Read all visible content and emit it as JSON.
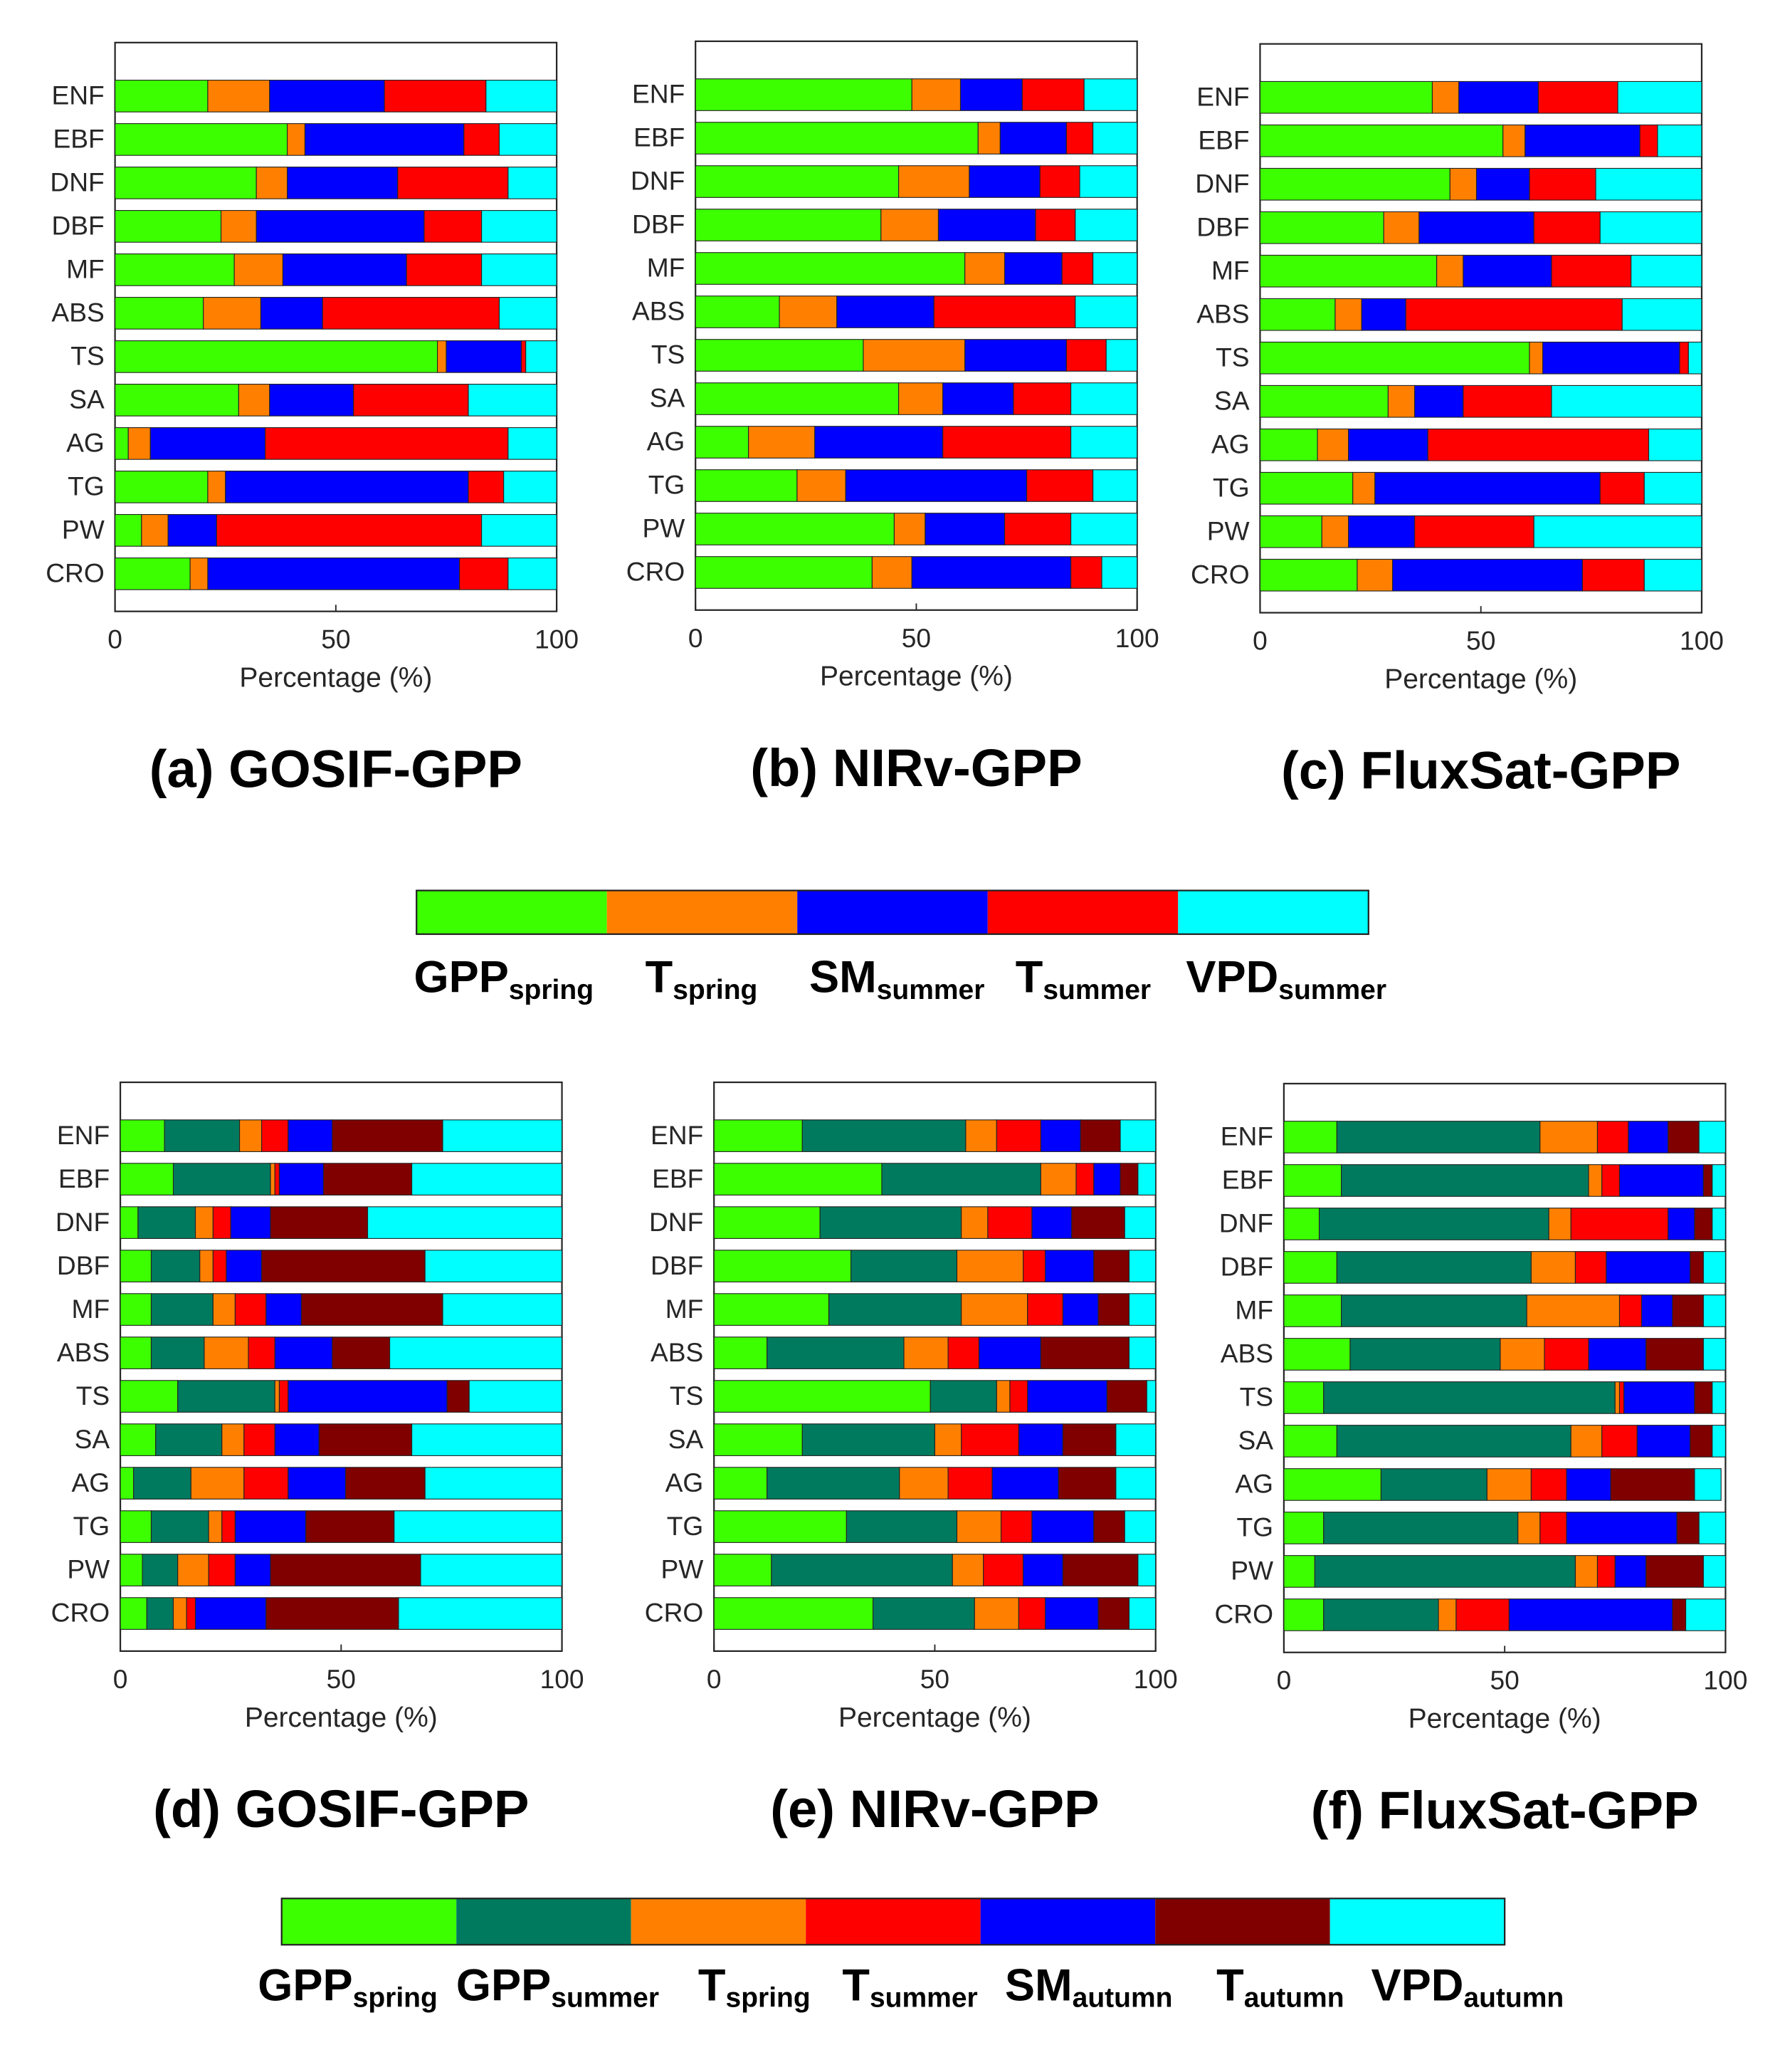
{
  "colors": {
    "GPPspring": "#3cff00",
    "GPPsummer": "#007a5e",
    "Tspring": "#ff8000",
    "Tsummer": "#ff0000",
    "SMsummer": "#0000ff",
    "SMautumn": "#0000ff",
    "Tautumn": "#800000",
    "VPDsummer": "#00ffff",
    "VPDautumn": "#00ffff"
  },
  "legends": [
    {
      "drivers": [
        "GPPspring",
        "Tspring",
        "SMsummer",
        "Tsummer",
        "VPDsummer"
      ],
      "labels": [
        {
          "main": "GPP",
          "sub": "spring"
        },
        {
          "main": "T",
          "sub": "spring"
        },
        {
          "main": "SM",
          "sub": "summer"
        },
        {
          "main": "T",
          "sub": "summer"
        },
        {
          "main": "VPD",
          "sub": "summer"
        }
      ]
    },
    {
      "drivers": [
        "GPPspring",
        "GPPsummer",
        "Tspring",
        "Tsummer",
        "SMautumn",
        "Tautumn",
        "VPDautumn"
      ],
      "labels": [
        {
          "main": "GPP",
          "sub": "spring"
        },
        {
          "main": "GPP",
          "sub": "summer"
        },
        {
          "main": "T",
          "sub": "spring"
        },
        {
          "main": "T",
          "sub": "summer"
        },
        {
          "main": "SM",
          "sub": "autumn"
        },
        {
          "main": "T",
          "sub": "autumn"
        },
        {
          "main": "VPD",
          "sub": "autumn"
        }
      ]
    }
  ],
  "chart_data": [
    {
      "type": "bar",
      "orientation": "horizontal",
      "stacked": true,
      "title": "(a) GOSIF-GPP",
      "xlabel": "Percentage (%)",
      "xlim": [
        0,
        100
      ],
      "xticks": [
        0,
        50,
        100
      ],
      "categories": [
        "ENF",
        "EBF",
        "DNF",
        "DBF",
        "MF",
        "ABS",
        "TS",
        "SA",
        "AG",
        "TG",
        "PW",
        "CRO"
      ],
      "legend": 0,
      "series": [
        {
          "name": "GPPspring",
          "values": [
            21,
            39,
            32,
            24,
            27,
            20,
            73,
            28,
            3,
            21,
            6,
            17
          ]
        },
        {
          "name": "Tspring",
          "values": [
            14,
            4,
            7,
            8,
            11,
            13,
            2,
            7,
            5,
            4,
            6,
            4
          ]
        },
        {
          "name": "SMsummer",
          "values": [
            26,
            36,
            25,
            38,
            28,
            14,
            17,
            19,
            26,
            55,
            11,
            57
          ]
        },
        {
          "name": "Tsummer",
          "values": [
            23,
            8,
            25,
            13,
            17,
            40,
            1,
            26,
            55,
            8,
            60,
            11
          ]
        },
        {
          "name": "VPDsummer",
          "values": [
            16,
            13,
            11,
            17,
            17,
            13,
            7,
            20,
            11,
            12,
            17,
            11
          ]
        }
      ]
    },
    {
      "type": "bar",
      "orientation": "horizontal",
      "stacked": true,
      "title": "(b) NIRv-GPP",
      "xlabel": "Percentage (%)",
      "xlim": [
        0,
        100
      ],
      "xticks": [
        0,
        50,
        100
      ],
      "categories": [
        "ENF",
        "EBF",
        "DNF",
        "DBF",
        "MF",
        "ABS",
        "TS",
        "SA",
        "AG",
        "TG",
        "PW",
        "CRO"
      ],
      "legend": 0,
      "series": [
        {
          "name": "GPPspring",
          "values": [
            49,
            64,
            46,
            42,
            61,
            19,
            38,
            46,
            12,
            23,
            45,
            40
          ]
        },
        {
          "name": "Tspring",
          "values": [
            11,
            5,
            16,
            13,
            9,
            13,
            23,
            10,
            15,
            11,
            7,
            9
          ]
        },
        {
          "name": "SMsummer",
          "values": [
            14,
            15,
            16,
            22,
            13,
            22,
            23,
            16,
            29,
            41,
            18,
            36
          ]
        },
        {
          "name": "Tsummer",
          "values": [
            14,
            6,
            9,
            9,
            7,
            32,
            9,
            13,
            29,
            15,
            15,
            7
          ]
        },
        {
          "name": "VPDsummer",
          "values": [
            12,
            10,
            13,
            14,
            10,
            14,
            7,
            15,
            15,
            10,
            15,
            8
          ]
        }
      ]
    },
    {
      "type": "bar",
      "orientation": "horizontal",
      "stacked": true,
      "title": "(c) FluxSat-GPP",
      "xlabel": "Percentage (%)",
      "xlim": [
        0,
        100
      ],
      "xticks": [
        0,
        50,
        100
      ],
      "categories": [
        "ENF",
        "EBF",
        "DNF",
        "DBF",
        "MF",
        "ABS",
        "TS",
        "SA",
        "AG",
        "TG",
        "PW",
        "CRO"
      ],
      "legend": 0,
      "series": [
        {
          "name": "GPPspring",
          "values": [
            39,
            55,
            43,
            28,
            40,
            17,
            61,
            29,
            13,
            21,
            14,
            22
          ]
        },
        {
          "name": "Tspring",
          "values": [
            6,
            5,
            6,
            8,
            6,
            6,
            3,
            6,
            7,
            5,
            6,
            8
          ]
        },
        {
          "name": "SMsummer",
          "values": [
            18,
            26,
            12,
            26,
            20,
            10,
            31,
            11,
            18,
            51,
            15,
            43
          ]
        },
        {
          "name": "Tsummer",
          "values": [
            18,
            4,
            15,
            15,
            18,
            49,
            2,
            20,
            50,
            10,
            27,
            14
          ]
        },
        {
          "name": "VPDsummer",
          "values": [
            19,
            10,
            24,
            23,
            16,
            18,
            3,
            34,
            12,
            13,
            38,
            13
          ]
        }
      ]
    },
    {
      "type": "bar",
      "orientation": "horizontal",
      "stacked": true,
      "title": "(d) GOSIF-GPP",
      "xlabel": "Percentage (%)",
      "xlim": [
        0,
        100
      ],
      "xticks": [
        0,
        50,
        100
      ],
      "categories": [
        "ENF",
        "EBF",
        "DNF",
        "DBF",
        "MF",
        "ABS",
        "TS",
        "SA",
        "AG",
        "TG",
        "PW",
        "CRO"
      ],
      "legend": 1,
      "series": [
        {
          "name": "GPPspring",
          "values": [
            10,
            12,
            4,
            7,
            7,
            7,
            13,
            8,
            3,
            7,
            5,
            6
          ]
        },
        {
          "name": "GPPsummer",
          "values": [
            17,
            22,
            13,
            11,
            14,
            12,
            22,
            15,
            13,
            13,
            8,
            6
          ]
        },
        {
          "name": "Tspring",
          "values": [
            5,
            1,
            4,
            3,
            5,
            10,
            1,
            5,
            12,
            3,
            7,
            3
          ]
        },
        {
          "name": "Tsummer",
          "values": [
            6,
            1,
            4,
            3,
            7,
            6,
            2,
            7,
            10,
            3,
            6,
            2
          ]
        },
        {
          "name": "SMautumn",
          "values": [
            10,
            10,
            9,
            8,
            8,
            13,
            36,
            10,
            13,
            16,
            8,
            16
          ]
        },
        {
          "name": "Tautumn",
          "values": [
            25,
            20,
            22,
            37,
            32,
            13,
            5,
            21,
            18,
            20,
            34,
            30
          ]
        },
        {
          "name": "VPDautumn",
          "values": [
            27,
            34,
            44,
            31,
            27,
            39,
            21,
            34,
            31,
            38,
            32,
            37
          ]
        }
      ]
    },
    {
      "type": "bar",
      "orientation": "horizontal",
      "stacked": true,
      "title": "(e) NIRv-GPP",
      "xlabel": "Percentage (%)",
      "xlim": [
        0,
        100
      ],
      "xticks": [
        0,
        50,
        100
      ],
      "categories": [
        "ENF",
        "EBF",
        "DNF",
        "DBF",
        "MF",
        "ABS",
        "TS",
        "SA",
        "AG",
        "TG",
        "PW",
        "CRO"
      ],
      "legend": 1,
      "series": [
        {
          "name": "GPPspring",
          "values": [
            20,
            38,
            24,
            31,
            26,
            12,
            49,
            20,
            12,
            30,
            13,
            36
          ]
        },
        {
          "name": "GPPsummer",
          "values": [
            37,
            36,
            32,
            24,
            30,
            31,
            15,
            30,
            30,
            25,
            41,
            23
          ]
        },
        {
          "name": "Tspring",
          "values": [
            7,
            8,
            6,
            15,
            15,
            10,
            3,
            6,
            11,
            10,
            7,
            10
          ]
        },
        {
          "name": "Tsummer",
          "values": [
            10,
            4,
            10,
            5,
            8,
            7,
            4,
            13,
            10,
            7,
            9,
            6
          ]
        },
        {
          "name": "SMautumn",
          "values": [
            9,
            6,
            9,
            11,
            8,
            14,
            18,
            10,
            15,
            14,
            9,
            12
          ]
        },
        {
          "name": "Tautumn",
          "values": [
            9,
            4,
            12,
            8,
            7,
            20,
            9,
            12,
            13,
            7,
            17,
            7
          ]
        },
        {
          "name": "VPDautumn",
          "values": [
            8,
            4,
            7,
            6,
            6,
            6,
            2,
            9,
            9,
            7,
            4,
            6
          ]
        }
      ]
    },
    {
      "type": "bar",
      "orientation": "horizontal",
      "stacked": true,
      "title": "(f) FluxSat-GPP",
      "xlabel": "Percentage (%)",
      "xlim": [
        0,
        100
      ],
      "xticks": [
        0,
        50,
        100
      ],
      "categories": [
        "ENF",
        "EBF",
        "DNF",
        "DBF",
        "MF",
        "ABS",
        "TS",
        "SA",
        "AG",
        "TG",
        "PW",
        "CRO"
      ],
      "legend": 1,
      "series": [
        {
          "name": "GPPspring",
          "values": [
            12,
            13,
            8,
            12,
            13,
            15,
            9,
            12,
            22,
            9,
            7,
            9
          ]
        },
        {
          "name": "GPPsummer",
          "values": [
            46,
            56,
            52,
            44,
            42,
            34,
            66,
            53,
            24,
            44,
            59,
            26
          ]
        },
        {
          "name": "Tspring",
          "values": [
            13,
            3,
            5,
            10,
            21,
            10,
            1,
            7,
            10,
            5,
            5,
            4
          ]
        },
        {
          "name": "Tsummer",
          "values": [
            7,
            4,
            22,
            7,
            5,
            10,
            1,
            8,
            8,
            6,
            4,
            12
          ]
        },
        {
          "name": "SMautumn",
          "values": [
            9,
            19,
            6,
            19,
            7,
            13,
            16,
            12,
            10,
            25,
            7,
            37
          ]
        },
        {
          "name": "Tautumn",
          "values": [
            7,
            2,
            4,
            3,
            7,
            13,
            4,
            5,
            19,
            5,
            13,
            3
          ]
        },
        {
          "name": "VPDautumn",
          "values": [
            6,
            3,
            3,
            5,
            5,
            5,
            3,
            3,
            6,
            6,
            5,
            9
          ]
        }
      ]
    }
  ]
}
